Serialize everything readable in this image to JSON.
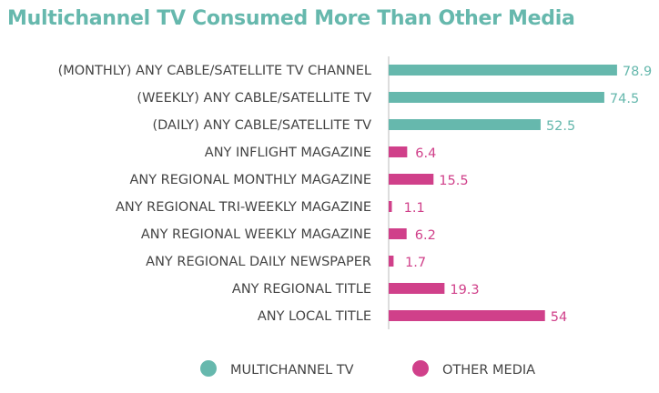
{
  "chart_data": {
    "type": "bar",
    "orientation": "horizontal",
    "title": "Multichannel TV Consumed More Than Other Media",
    "categories": [
      "(MONTHLY) ANY CABLE/SATELLITE TV CHANNEL",
      "(WEEKLY) ANY CABLE/SATELLITE TV",
      "(DAILY) ANY CABLE/SATELLITE TV",
      "ANY INFLIGHT MAGAZINE",
      "ANY REGIONAL MONTHLY MAGAZINE",
      "ANY REGIONAL TRI-WEEKLY MAGAZINE",
      "ANY REGIONAL WEEKLY MAGAZINE",
      "ANY REGIONAL DAILY NEWSPAPER",
      "ANY REGIONAL TITLE",
      "ANY LOCAL TITLE"
    ],
    "values": [
      78.9,
      74.5,
      52.5,
      6.4,
      15.5,
      1.1,
      6.2,
      1.7,
      19.3,
      54
    ],
    "value_labels": [
      "78.9",
      "74.5",
      "52.5",
      "6.4",
      "15.5",
      "1.1",
      "6.2",
      "1.7",
      "19.3",
      "54"
    ],
    "groups": [
      "MULTICHANNEL TV",
      "MULTICHANNEL TV",
      "MULTICHANNEL TV",
      "OTHER MEDIA",
      "OTHER MEDIA",
      "OTHER MEDIA",
      "OTHER MEDIA",
      "OTHER MEDIA",
      "OTHER MEDIA",
      "OTHER MEDIA"
    ],
    "legend": [
      {
        "name": "MULTICHANNEL TV",
        "color": "#66b8ad"
      },
      {
        "name": "OTHER MEDIA",
        "color": "#d0408a"
      }
    ],
    "xlim": [
      0,
      90
    ],
    "grid": false,
    "data_labels": true,
    "legend_position": "bottom"
  }
}
